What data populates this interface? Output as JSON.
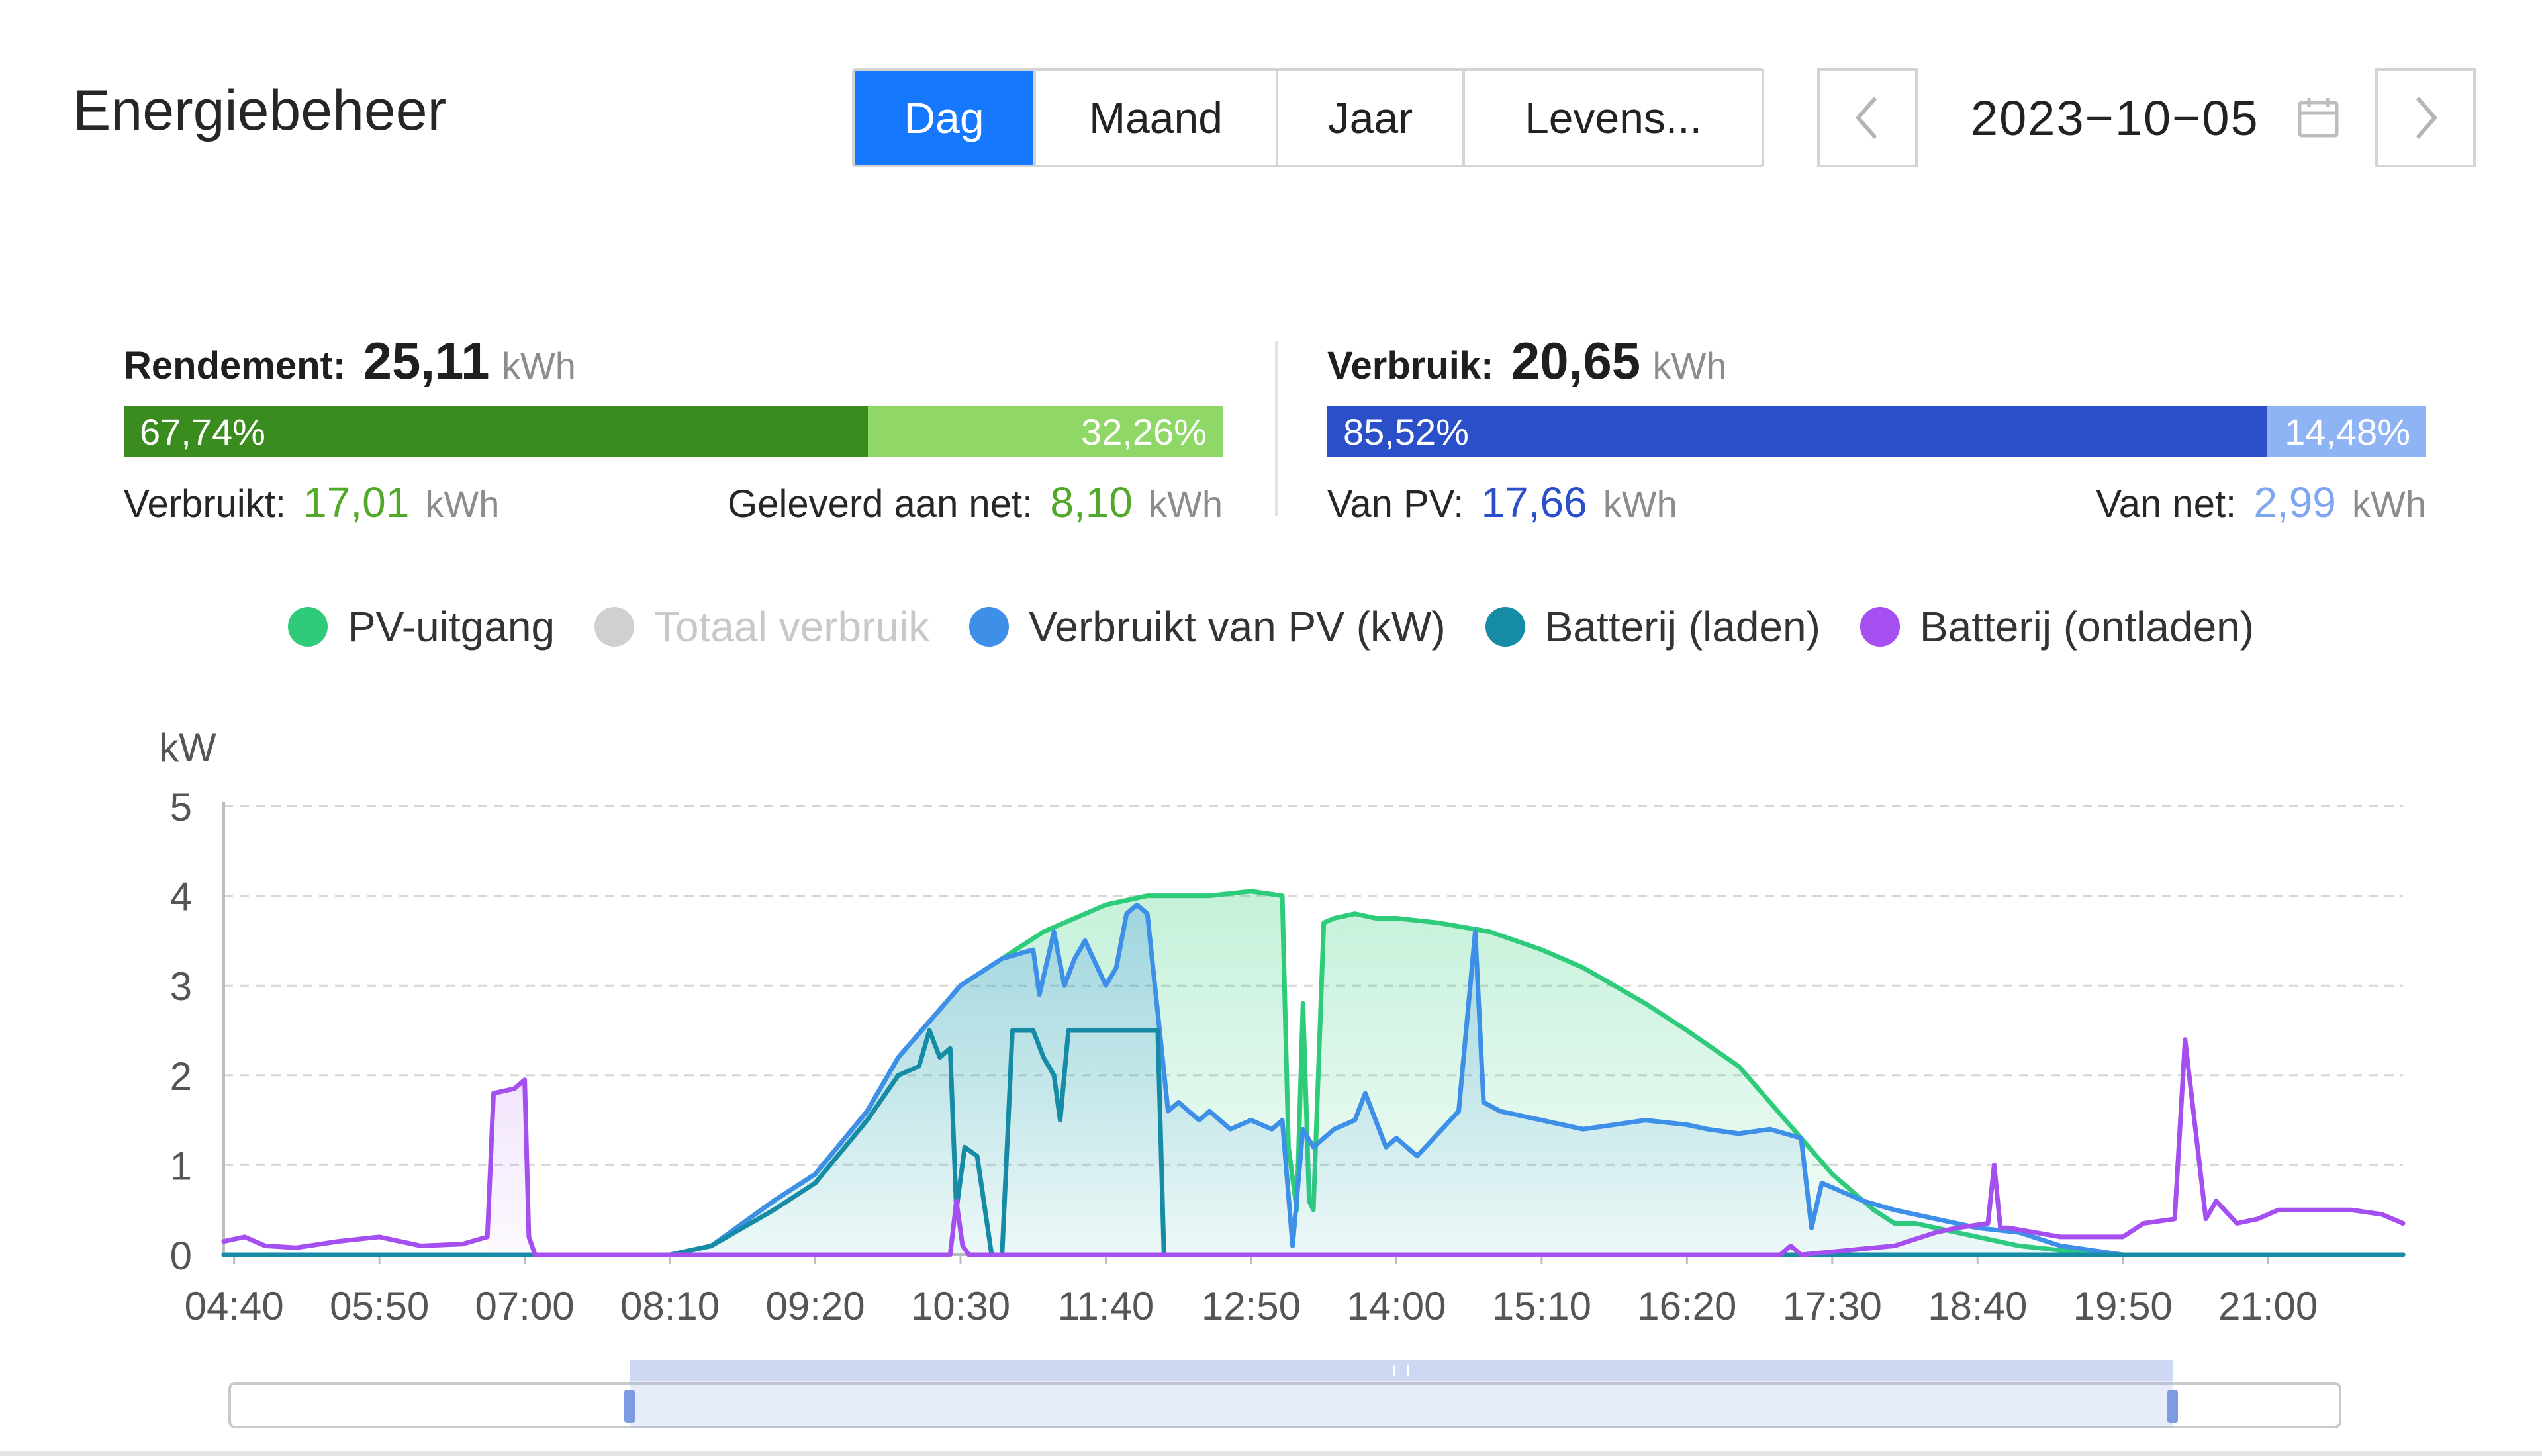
{
  "header": {
    "title": "Energiebeheer"
  },
  "tabs": [
    {
      "label": "Dag",
      "active": true
    },
    {
      "label": "Maand",
      "active": false
    },
    {
      "label": "Jaar",
      "active": false
    },
    {
      "label": "Levens...",
      "active": false
    }
  ],
  "date_picker": {
    "value": "2023−10−05",
    "prev_icon": "chevron-left-icon",
    "next_icon": "chevron-right-icon",
    "calendar_icon": "calendar-icon"
  },
  "yield": {
    "label": "Rendement:",
    "value": "25,11",
    "unit": "kWh",
    "bar": {
      "left_pct": "67,74%",
      "right_pct": "32,26%",
      "left_fraction": 0.6774
    },
    "consumed_label": "Verbruikt:",
    "consumed_value": "17,01",
    "consumed_unit": "kWh",
    "grid_label": "Geleverd aan net:",
    "grid_value": "8,10",
    "grid_unit": "kWh",
    "colors": {
      "left": "#3a8c1f",
      "right": "#8fd868",
      "value_text": "#52a829"
    }
  },
  "consumption": {
    "label": "Verbruik:",
    "value": "20,65",
    "unit": "kWh",
    "bar": {
      "left_pct": "85,52%",
      "right_pct": "14,48%",
      "left_fraction": 0.8552
    },
    "pv_label": "Van PV:",
    "pv_value": "17,66",
    "pv_unit": "kWh",
    "grid_label": "Van net:",
    "grid_value": "2,99",
    "grid_unit": "kWh",
    "colors": {
      "left": "#2a4fc9",
      "right": "#8fb4f6",
      "pv_text": "#2a4fc9",
      "grid_text": "#7fa6ef"
    }
  },
  "legend": [
    {
      "label": "PV-uitgang",
      "color": "#2ecc7a",
      "active": true
    },
    {
      "label": "Totaal verbruik",
      "color": "#d0d0d0",
      "active": false
    },
    {
      "label": "Verbruikt van PV (kW)",
      "color": "#3d8fe8",
      "active": true
    },
    {
      "label": "Batterij (laden)",
      "color": "#168ba6",
      "active": true
    },
    {
      "label": "Batterij (ontladen)",
      "color": "#a64ff0",
      "active": true
    }
  ],
  "chart_data": {
    "type": "area",
    "ylabel": "kW",
    "ylim": [
      0,
      5
    ],
    "yticks": [
      "0",
      "1",
      "2",
      "3",
      "4",
      "5"
    ],
    "xticks": [
      "04:40",
      "05:50",
      "07:00",
      "08:10",
      "09:20",
      "10:30",
      "11:40",
      "12:50",
      "14:00",
      "15:10",
      "16:20",
      "17:30",
      "18:40",
      "19:50",
      "21:00"
    ],
    "xlim": [
      "04:35",
      "22:05"
    ],
    "grid": true,
    "series": [
      {
        "name": "PV-uitgang",
        "color": "#2ecc7a",
        "fill": true,
        "x": [
          "04:35",
          "08:10",
          "08:30",
          "09:00",
          "09:20",
          "09:45",
          "10:00",
          "10:15",
          "10:30",
          "10:50",
          "11:10",
          "11:40",
          "12:00",
          "12:30",
          "12:50",
          "13:05",
          "13:08",
          "13:12",
          "13:15",
          "13:18",
          "13:20",
          "13:25",
          "13:30",
          "13:40",
          "13:50",
          "14:00",
          "14:20",
          "14:45",
          "15:10",
          "15:30",
          "16:00",
          "16:20",
          "16:45",
          "17:00",
          "17:15",
          "17:30",
          "17:50",
          "18:00",
          "18:10",
          "18:20",
          "18:40",
          "19:00",
          "19:20",
          "19:50",
          "20:20",
          "22:05"
        ],
        "y": [
          0,
          0,
          0.1,
          0.6,
          0.9,
          1.6,
          2.2,
          2.6,
          3.0,
          3.3,
          3.6,
          3.9,
          4.0,
          4.0,
          4.05,
          4.0,
          1.2,
          0.5,
          2.8,
          0.6,
          0.5,
          3.7,
          3.75,
          3.8,
          3.75,
          3.75,
          3.7,
          3.6,
          3.4,
          3.2,
          2.8,
          2.5,
          2.1,
          1.7,
          1.3,
          0.9,
          0.5,
          0.35,
          0.35,
          0.3,
          0.2,
          0.1,
          0.05,
          0,
          0,
          0
        ]
      },
      {
        "name": "Verbruikt van PV (kW)",
        "color": "#3d8fe8",
        "fill": true,
        "x": [
          "04:35",
          "08:10",
          "08:30",
          "09:00",
          "09:20",
          "09:45",
          "10:00",
          "10:15",
          "10:30",
          "10:50",
          "11:05",
          "11:08",
          "11:15",
          "11:20",
          "11:25",
          "11:30",
          "11:40",
          "11:45",
          "11:50",
          "11:55",
          "12:00",
          "12:10",
          "12:15",
          "12:25",
          "12:30",
          "12:40",
          "12:50",
          "13:00",
          "13:05",
          "13:10",
          "13:15",
          "13:20",
          "13:30",
          "13:40",
          "13:45",
          "13:55",
          "14:00",
          "14:10",
          "14:30",
          "14:38",
          "14:42",
          "14:50",
          "15:10",
          "15:30",
          "16:00",
          "16:20",
          "16:30",
          "16:45",
          "17:00",
          "17:15",
          "17:20",
          "17:25",
          "17:35",
          "17:45",
          "18:00",
          "18:20",
          "18:40",
          "19:00",
          "19:20",
          "19:50",
          "22:05"
        ],
        "y": [
          0,
          0,
          0.1,
          0.6,
          0.9,
          1.6,
          2.2,
          2.6,
          3.0,
          3.3,
          3.4,
          2.9,
          3.6,
          3.0,
          3.3,
          3.5,
          3.0,
          3.2,
          3.8,
          3.9,
          3.8,
          1.6,
          1.7,
          1.5,
          1.6,
          1.4,
          1.5,
          1.4,
          1.5,
          0.1,
          1.4,
          1.2,
          1.4,
          1.5,
          1.8,
          1.2,
          1.3,
          1.1,
          1.6,
          3.6,
          1.7,
          1.6,
          1.5,
          1.4,
          1.5,
          1.45,
          1.4,
          1.35,
          1.4,
          1.3,
          0.3,
          0.8,
          0.7,
          0.6,
          0.5,
          0.4,
          0.3,
          0.25,
          0.1,
          0,
          0
        ]
      },
      {
        "name": "Batterij (laden)",
        "color": "#168ba6",
        "fill": false,
        "x": [
          "04:35",
          "08:10",
          "08:30",
          "09:00",
          "09:20",
          "09:45",
          "10:00",
          "10:10",
          "10:15",
          "10:20",
          "10:25",
          "10:28",
          "10:32",
          "10:38",
          "10:45",
          "10:50",
          "10:55",
          "11:00",
          "11:05",
          "11:10",
          "11:15",
          "11:18",
          "11:22",
          "11:25",
          "11:30",
          "11:40",
          "11:50",
          "12:00",
          "12:05",
          "12:08",
          "12:15",
          "22:05"
        ],
        "y": [
          0,
          0,
          0.1,
          0.5,
          0.8,
          1.5,
          2.0,
          2.1,
          2.5,
          2.2,
          2.3,
          0.5,
          1.2,
          1.1,
          0.0,
          0.0,
          2.5,
          2.5,
          2.5,
          2.2,
          2.0,
          1.5,
          2.5,
          2.5,
          2.5,
          2.5,
          2.5,
          2.5,
          2.5,
          0,
          0,
          0
        ]
      },
      {
        "name": "Batterij (ontladen)",
        "color": "#a64ff0",
        "fill": false,
        "x": [
          "04:35",
          "04:45",
          "04:55",
          "05:10",
          "05:30",
          "05:50",
          "06:10",
          "06:30",
          "06:42",
          "06:45",
          "06:55",
          "07:00",
          "07:02",
          "07:05",
          "10:25",
          "10:28",
          "10:31",
          "10:34",
          "17:05",
          "17:10",
          "17:15",
          "18:00",
          "18:20",
          "18:30",
          "18:45",
          "18:48",
          "18:51",
          "18:55",
          "19:20",
          "19:50",
          "20:00",
          "20:15",
          "20:20",
          "20:30",
          "20:35",
          "20:45",
          "20:55",
          "21:05",
          "21:20",
          "21:40",
          "21:55",
          "22:05"
        ],
        "y": [
          0.15,
          0.2,
          0.1,
          0.08,
          0.15,
          0.2,
          0.1,
          0.12,
          0.2,
          1.8,
          1.85,
          1.95,
          0.2,
          0,
          0,
          0.6,
          0.1,
          0,
          0,
          0.1,
          0,
          0.1,
          0.25,
          0.3,
          0.35,
          1.0,
          0.3,
          0.3,
          0.2,
          0.2,
          0.35,
          0.4,
          2.4,
          0.4,
          0.6,
          0.35,
          0.4,
          0.5,
          0.5,
          0.5,
          0.45,
          0.35
        ]
      }
    ]
  },
  "zoom_slider": {
    "start_fraction": 0.19,
    "end_fraction": 0.92,
    "handle_icon": "drag-handle-icon"
  }
}
